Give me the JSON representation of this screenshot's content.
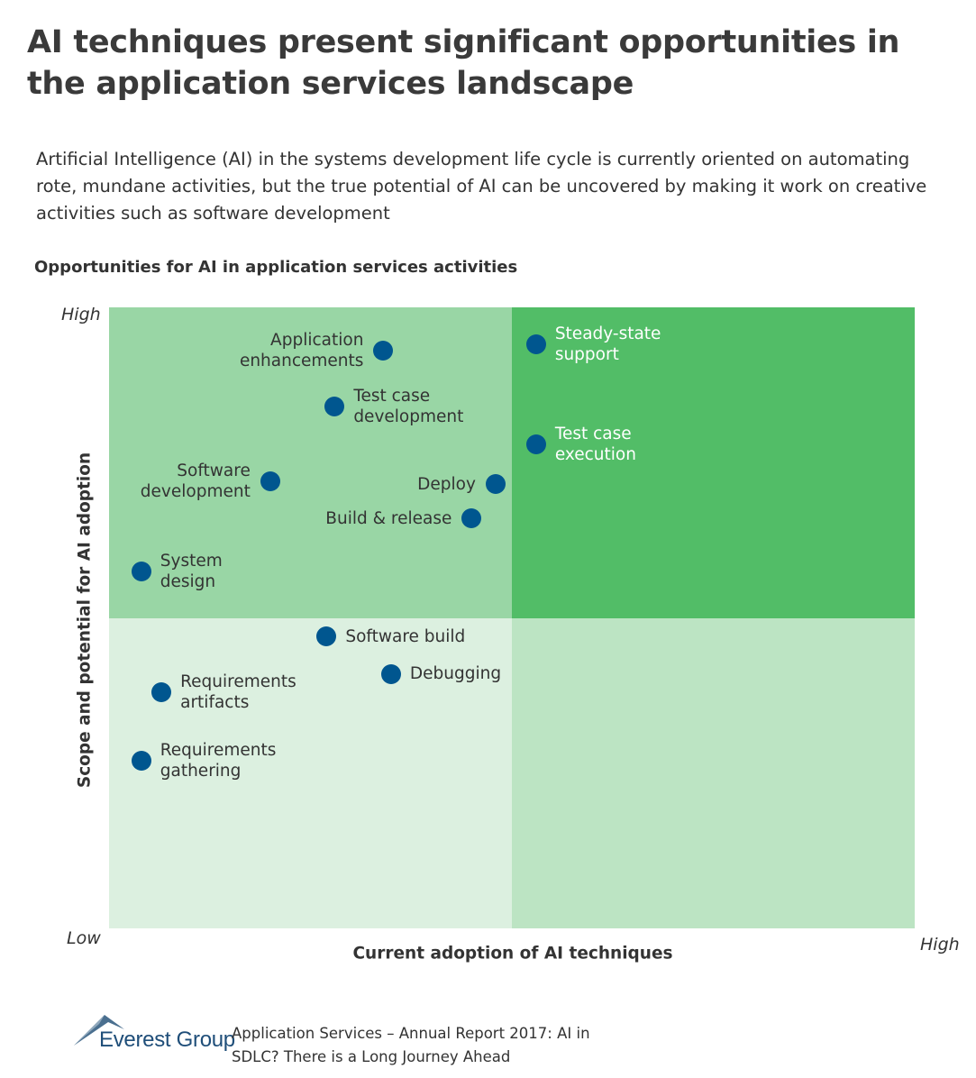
{
  "title": "AI techniques present significant opportunities in the application services landscape",
  "subtitle": "Artificial Intelligence (AI) in the systems development life cycle is currently oriented on automating rote, mundane activities, but the true potential of AI can be uncovered by making it work on creative activities such as software development",
  "colors": {
    "quad_top_left": "#99d6a5",
    "quad_top_right": "#52bd67",
    "quad_bottom_left": "#dcf0e0",
    "quad_bottom_right": "#bce4c3",
    "dot": "#00568f",
    "label_dark": "#333333",
    "label_light": "#ffffff"
  },
  "chart_data": {
    "type": "scatter",
    "title": "Opportunities for AI in application services activities",
    "xlabel": "Current adoption of AI techniques",
    "ylabel": "Scope and potential for AI adoption",
    "xlim": [
      0,
      100
    ],
    "ylim": [
      0,
      100
    ],
    "x_low_label": "Low",
    "x_high_label": "High",
    "y_low_label": "Low",
    "y_high_label": "High",
    "quadrant_split": {
      "x": 50,
      "y": 50
    },
    "points": [
      {
        "name": "Application enhancements",
        "lines": [
          "Application",
          "enhancements"
        ],
        "x": 34,
        "y": 93,
        "label_side": "left"
      },
      {
        "name": "Test case development",
        "lines": [
          "Test case",
          "development"
        ],
        "x": 28,
        "y": 84,
        "label_side": "right"
      },
      {
        "name": "Software development",
        "lines": [
          "Software",
          "development"
        ],
        "x": 20,
        "y": 72,
        "label_side": "left"
      },
      {
        "name": "Deploy",
        "lines": [
          "Deploy"
        ],
        "x": 48,
        "y": 71.5,
        "label_side": "left"
      },
      {
        "name": "Build & release",
        "lines": [
          "Build & release"
        ],
        "x": 45,
        "y": 66,
        "label_side": "left"
      },
      {
        "name": "System design",
        "lines": [
          "System",
          "design"
        ],
        "x": 4,
        "y": 57.5,
        "label_side": "right"
      },
      {
        "name": "Steady-state support",
        "lines": [
          "Steady-state",
          "support"
        ],
        "x": 53,
        "y": 94,
        "label_side": "right"
      },
      {
        "name": "Test case execution",
        "lines": [
          "Test case",
          "execution"
        ],
        "x": 53,
        "y": 78,
        "label_side": "right"
      },
      {
        "name": "Software build",
        "lines": [
          "Software build"
        ],
        "x": 27,
        "y": 47,
        "label_side": "right"
      },
      {
        "name": "Debugging",
        "lines": [
          "Debugging"
        ],
        "x": 35,
        "y": 41,
        "label_side": "right"
      },
      {
        "name": "Requirements artifacts",
        "lines": [
          "Requirements",
          "artifacts"
        ],
        "x": 6.5,
        "y": 38,
        "label_side": "right"
      },
      {
        "name": "Requirements gathering",
        "lines": [
          "Requirements",
          "gathering"
        ],
        "x": 4,
        "y": 27,
        "label_side": "right"
      }
    ]
  },
  "footer": {
    "logo_text": "Everest Group",
    "source_text": "Application Services – Annual Report 2017: AI in SDLC? There is a Long Journey Ahead"
  }
}
